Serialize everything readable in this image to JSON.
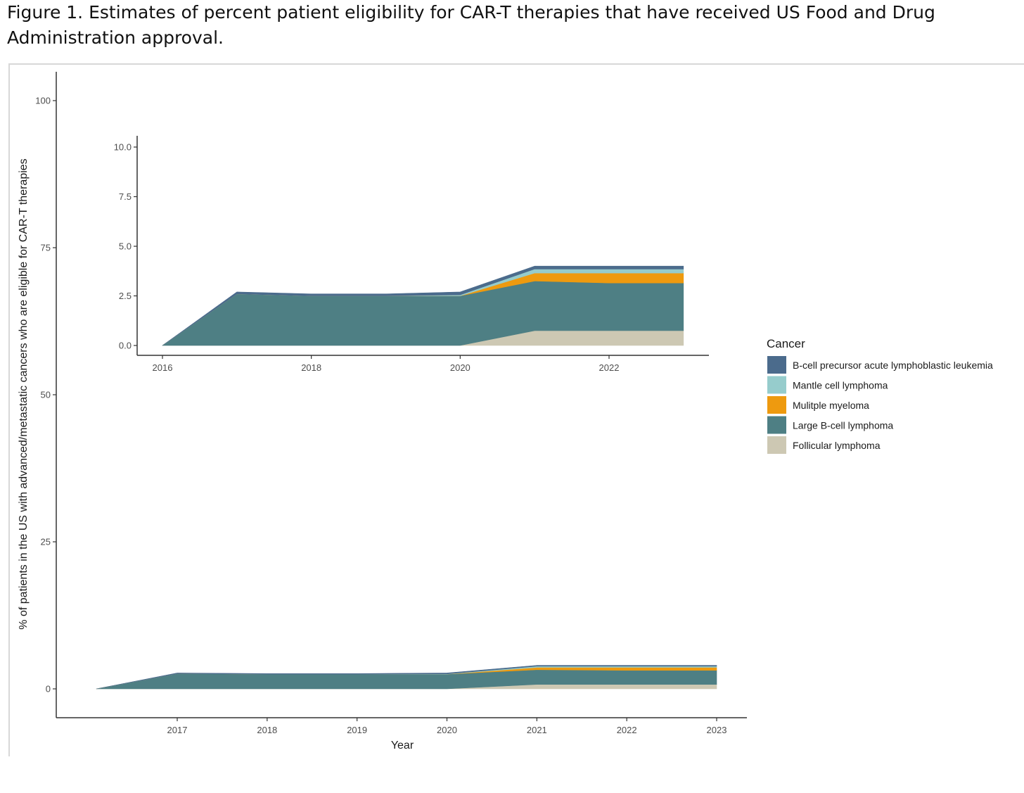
{
  "caption": "Figure 1. Estimates of percent patient eligibility for CAR-T therapies that have received US Food and Drug Administration approval.",
  "chart_data": [
    {
      "id": "main",
      "type": "area",
      "stacked": true,
      "x": [
        2016.1,
        2017,
        2018,
        2019,
        2020,
        2021,
        2022,
        2023
      ],
      "xticks": [
        2017,
        2018,
        2019,
        2020,
        2021,
        2022,
        2023
      ],
      "xlabel": "Year",
      "ylabel": "% of patients in the US with advanced/metastatic cancers who are eligible for CAR-T therapies",
      "ylim": [
        -5,
        105
      ],
      "yticks": [
        0,
        25,
        50,
        75,
        100
      ],
      "ytick_labels": [
        "0",
        "25",
        "50",
        "75",
        "100"
      ],
      "grid": false,
      "legend_position": "right",
      "series": [
        {
          "name": "Follicular lymphoma",
          "color": "#cdc8b3",
          "values": [
            0,
            0,
            0,
            0,
            0,
            0.75,
            0.75,
            0.75
          ]
        },
        {
          "name": "Large B-cell lymphoma",
          "color": "#4e7f84",
          "values": [
            0,
            2.6,
            2.5,
            2.5,
            2.5,
            2.5,
            2.4,
            2.4
          ]
        },
        {
          "name": "Mulitple myeloma",
          "color": "#ee9a0f",
          "values": [
            0,
            0,
            0,
            0,
            0,
            0.4,
            0.5,
            0.5
          ]
        },
        {
          "name": "Mantle cell lymphoma",
          "color": "#96cccc",
          "values": [
            0,
            0,
            0,
            0,
            0.05,
            0.2,
            0.2,
            0.2
          ]
        },
        {
          "name": "B-cell precursor acute lymphoblastic leukemia",
          "color": "#4b6b8c",
          "values": [
            0,
            0.1,
            0.1,
            0.1,
            0.15,
            0.15,
            0.15,
            0.15
          ]
        }
      ]
    },
    {
      "id": "inset",
      "type": "area",
      "stacked": true,
      "x": [
        2016,
        2017,
        2018,
        2019,
        2020,
        2021,
        2022,
        2023
      ],
      "xticks": [
        2016,
        2018,
        2020,
        2022
      ],
      "xlim": [
        2015.65,
        2023.35
      ],
      "ylim": [
        -0.5,
        10.5
      ],
      "yticks": [
        0,
        2.5,
        5,
        7.5,
        10
      ],
      "ytick_labels": [
        "0.0",
        "2.5",
        "5.0",
        "7.5",
        "10.0"
      ],
      "grid": false,
      "series": [
        {
          "name": "Follicular lymphoma",
          "color": "#cdc8b3",
          "values": [
            0,
            0,
            0,
            0,
            0,
            0.75,
            0.75,
            0.75
          ]
        },
        {
          "name": "Large B-cell lymphoma",
          "color": "#4e7f84",
          "values": [
            0,
            2.6,
            2.5,
            2.5,
            2.5,
            2.5,
            2.4,
            2.4
          ]
        },
        {
          "name": "Mulitple myeloma",
          "color": "#ee9a0f",
          "values": [
            0,
            0,
            0,
            0,
            0,
            0.4,
            0.5,
            0.5
          ]
        },
        {
          "name": "Mantle cell lymphoma",
          "color": "#96cccc",
          "values": [
            0,
            0,
            0,
            0,
            0.05,
            0.2,
            0.2,
            0.2
          ]
        },
        {
          "name": "B-cell precursor acute lymphoblastic leukemia",
          "color": "#4b6b8c",
          "values": [
            0,
            0.1,
            0.1,
            0.1,
            0.15,
            0.15,
            0.15,
            0.15
          ]
        }
      ]
    }
  ],
  "legend": {
    "title": "Cancer",
    "items": [
      {
        "label": "B-cell precursor acute lymphoblastic leukemia",
        "color": "#4b6b8c"
      },
      {
        "label": "Mantle cell lymphoma",
        "color": "#96cccc"
      },
      {
        "label": "Mulitple myeloma",
        "color": "#ee9a0f"
      },
      {
        "label": "Large B-cell lymphoma",
        "color": "#4e7f84"
      },
      {
        "label": "Follicular lymphoma",
        "color": "#cdc8b3"
      }
    ]
  }
}
